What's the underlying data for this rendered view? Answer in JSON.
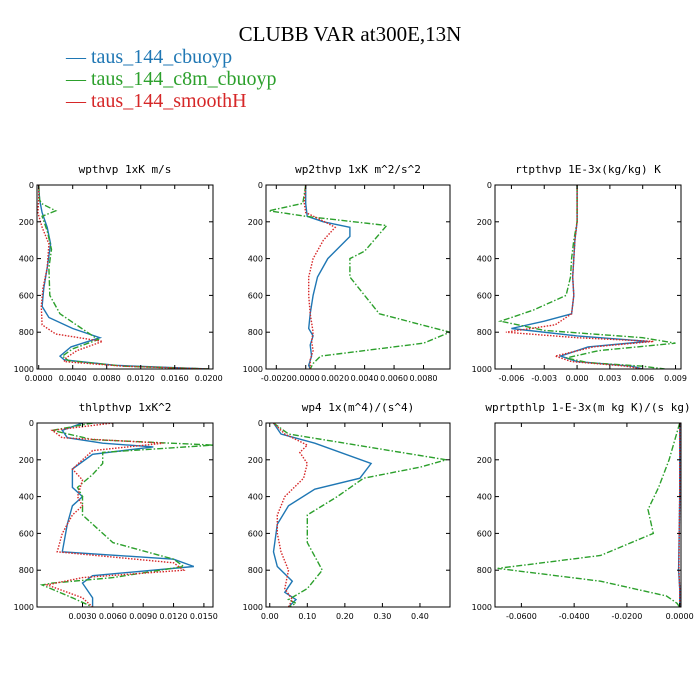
{
  "title": "CLUBB VAR at300E,13N",
  "legend": [
    {
      "label": "taus_144_cbuoyp",
      "color": "#1f77b4",
      "dash": "solid"
    },
    {
      "label": "taus_144_c8m_cbuoyp",
      "color": "#2ca02c",
      "dash": "dashdot"
    },
    {
      "label": "taus_144_smoothH",
      "color": "#d62728",
      "dash": "dotted"
    }
  ],
  "chart_data": [
    {
      "type": "line",
      "title": "wpthvp  1xK m/s",
      "xlim": [
        -0.0002,
        0.0205
      ],
      "xticks": [
        0,
        0.004,
        0.008,
        0.012,
        0.016,
        0.02
      ],
      "xticklabels": [
        "0.0000",
        "0.0040",
        "0.0080",
        "0.0120",
        "0.0160",
        "0.0200"
      ],
      "ylim": [
        0,
        1000
      ],
      "yticks": [
        0,
        200,
        400,
        600,
        800,
        1000
      ],
      "series": [
        {
          "name": "taus_144_cbuoyp",
          "x": [
            0.0,
            0.0001,
            0.0004,
            0.001,
            0.0014,
            0.001,
            0.0006,
            0.0004,
            0.0012,
            0.004,
            0.0072,
            0.0038,
            0.0025,
            0.003,
            0.009,
            0.02
          ],
          "y": [
            0,
            80,
            150,
            230,
            320,
            450,
            560,
            660,
            720,
            780,
            830,
            880,
            930,
            950,
            980,
            1000
          ]
        },
        {
          "name": "taus_144_c8m_cbuoyp",
          "x": [
            0.0,
            0.0001,
            0.0003,
            0.002,
            0.0004,
            0.001,
            0.0015,
            0.0012,
            0.0013,
            0.0025,
            0.007,
            0.004,
            0.0028,
            0.0035,
            0.01,
            0.02
          ],
          "y": [
            0,
            80,
            100,
            140,
            170,
            250,
            350,
            450,
            600,
            700,
            840,
            890,
            930,
            955,
            985,
            1000
          ]
        },
        {
          "name": "taus_144_smoothH",
          "x": [
            0.0,
            0.0,
            -0.0001,
            0.0004,
            0.0012,
            0.001,
            0.0005,
            0.0003,
            0.0004,
            0.002,
            0.0075,
            0.0045,
            0.0032,
            0.003,
            0.01,
            0.02
          ],
          "y": [
            0,
            80,
            150,
            230,
            320,
            450,
            560,
            660,
            760,
            810,
            850,
            900,
            940,
            960,
            985,
            1000
          ]
        }
      ]
    },
    {
      "type": "line",
      "title": "wp2thvp  1xK m^2/s^2",
      "xlim": [
        -0.0027,
        0.0098
      ],
      "xticks": [
        -0.002,
        0,
        0.002,
        0.004,
        0.006,
        0.008
      ],
      "xticklabels": [
        "-0.0020",
        "0.0000",
        "0.0020",
        "0.0040",
        "0.0060",
        "0.0080"
      ],
      "ylim": [
        0,
        1000
      ],
      "yticks": [
        0,
        200,
        400,
        600,
        800,
        1000
      ],
      "series": [
        {
          "name": "taus_144_cbuoyp",
          "x": [
            0.0,
            0.0,
            0.0001,
            0.0012,
            0.003,
            0.003,
            0.0015,
            0.0008,
            0.0005,
            0.0003,
            0.0002,
            0.0005,
            0.0003,
            0.0004,
            0.0002,
            0.0003
          ],
          "y": [
            0,
            100,
            170,
            200,
            230,
            280,
            400,
            500,
            600,
            700,
            780,
            820,
            870,
            930,
            980,
            1000
          ]
        },
        {
          "name": "taus_144_c8m_cbuoyp",
          "x": [
            0.0,
            -0.0002,
            -0.0025,
            0.0,
            0.0055,
            0.004,
            0.003,
            0.003,
            0.004,
            0.005,
            0.0098,
            0.008,
            0.004,
            0.001,
            0.0005,
            0.0003
          ],
          "y": [
            0,
            100,
            140,
            170,
            220,
            360,
            400,
            500,
            600,
            700,
            800,
            860,
            900,
            930,
            970,
            1000
          ]
        },
        {
          "name": "taus_144_smoothH",
          "x": [
            0.0,
            -0.0001,
            0.0,
            0.0008,
            0.002,
            0.0012,
            0.0005,
            0.0002,
            0.0002,
            0.0003,
            0.0005,
            0.0004,
            0.0005,
            0.0003,
            0.0003
          ],
          "y": [
            0,
            100,
            150,
            180,
            230,
            300,
            400,
            500,
            600,
            700,
            800,
            850,
            900,
            950,
            1000
          ]
        }
      ]
    },
    {
      "type": "line",
      "title": "rtpthvp  1E-3x(kg/kg) K",
      "xlim": [
        -0.0075,
        0.0095
      ],
      "xticks": [
        -0.006,
        -0.003,
        0,
        0.003,
        0.006,
        0.009
      ],
      "xticklabels": [
        "-0.006",
        "-0.003",
        "0.000",
        "0.003",
        "0.006",
        "0.009"
      ],
      "ylim": [
        0,
        1000
      ],
      "yticks": [
        0,
        200,
        400,
        600,
        800,
        1000
      ],
      "series": [
        {
          "name": "taus_144_cbuoyp",
          "x": [
            0.0,
            0.0,
            -0.0002,
            -0.0003,
            -0.0004,
            -0.0003,
            -0.0005,
            -0.003,
            -0.006,
            0.0,
            0.0065,
            0.001,
            -0.0015,
            0.0,
            0.005,
            0.006
          ],
          "y": [
            0,
            200,
            300,
            400,
            500,
            600,
            700,
            740,
            780,
            820,
            850,
            880,
            930,
            960,
            985,
            1000
          ]
        },
        {
          "name": "taus_144_c8m_cbuoyp",
          "x": [
            0.0,
            0.0,
            -0.0003,
            -0.0005,
            -0.0006,
            -0.001,
            -0.004,
            -0.007,
            -0.003,
            0.006,
            0.009,
            0.002,
            -0.001,
            0.001,
            0.006,
            0.008
          ],
          "y": [
            0,
            200,
            300,
            400,
            500,
            600,
            680,
            740,
            790,
            830,
            860,
            900,
            940,
            965,
            985,
            1000
          ]
        },
        {
          "name": "taus_144_smoothH",
          "x": [
            0.0,
            0.0,
            -0.0002,
            -0.0003,
            -0.0004,
            -0.0003,
            -0.0005,
            -0.002,
            -0.0065,
            0.0,
            0.007,
            0.0015,
            -0.002,
            -0.0005,
            0.0045,
            0.006
          ],
          "y": [
            0,
            200,
            300,
            400,
            500,
            600,
            700,
            760,
            800,
            830,
            850,
            880,
            930,
            960,
            985,
            1000
          ]
        }
      ]
    },
    {
      "type": "line",
      "title": "thlpthvp  1xK^2",
      "xlim": [
        -0.0015,
        0.0159
      ],
      "xticks": [
        0.003,
        0.006,
        0.009,
        0.012,
        0.015
      ],
      "xticklabels": [
        "0.0030",
        "0.0060",
        "0.0090",
        "0.0120",
        "0.0150"
      ],
      "ylim": [
        0,
        1000
      ],
      "yticks": [
        0,
        200,
        400,
        600,
        800,
        1000
      ],
      "series": [
        {
          "name": "taus_144_cbuoyp",
          "x": [
            0.003,
            0.001,
            0.0015,
            0.005,
            0.01,
            0.004,
            0.002,
            0.002,
            0.003,
            0.002,
            0.0015,
            0.001,
            0.012,
            0.014,
            0.004,
            0.003,
            0.004,
            0.004
          ],
          "y": [
            0,
            40,
            80,
            110,
            130,
            170,
            250,
            350,
            400,
            450,
            550,
            700,
            740,
            780,
            830,
            870,
            950,
            1000
          ]
        },
        {
          "name": "taus_144_c8m_cbuoyp",
          "x": [
            0.004,
            0.0,
            0.004,
            0.0159,
            0.005,
            0.005,
            0.004,
            0.0025,
            0.003,
            0.003,
            0.006,
            0.012,
            0.013,
            0.006,
            0.0,
            -0.001,
            0.002,
            0.004
          ],
          "y": [
            0,
            40,
            90,
            120,
            160,
            220,
            280,
            350,
            400,
            500,
            650,
            740,
            780,
            840,
            870,
            880,
            950,
            1000
          ]
        },
        {
          "name": "taus_144_smoothH",
          "x": [
            0.006,
            0.0,
            0.001,
            0.011,
            0.004,
            0.002,
            0.003,
            0.0025,
            0.003,
            0.002,
            0.001,
            0.0005,
            0.012,
            0.013,
            0.003,
            -0.0005,
            0.003,
            0.004
          ],
          "y": [
            0,
            40,
            80,
            110,
            150,
            250,
            310,
            400,
            450,
            500,
            600,
            700,
            760,
            800,
            840,
            880,
            950,
            1000
          ]
        }
      ]
    },
    {
      "type": "line",
      "title": "wp4  1x(m^4)/(s^4)",
      "xlim": [
        -0.01,
        0.48
      ],
      "xticks": [
        0,
        0.1,
        0.2,
        0.3,
        0.4
      ],
      "xticklabels": [
        "0.00",
        "0.10",
        "0.20",
        "0.30",
        "0.40"
      ],
      "ylim": [
        0,
        1000
      ],
      "yticks": [
        0,
        200,
        400,
        600,
        800,
        1000
      ],
      "series": [
        {
          "name": "taus_144_cbuoyp",
          "x": [
            0.01,
            0.03,
            0.12,
            0.27,
            0.24,
            0.12,
            0.05,
            0.02,
            0.01,
            0.02,
            0.06,
            0.04,
            0.07,
            0.05
          ],
          "y": [
            0,
            60,
            110,
            220,
            300,
            360,
            450,
            550,
            700,
            780,
            860,
            920,
            960,
            1000
          ]
        },
        {
          "name": "taus_144_c8m_cbuoyp",
          "x": [
            0.01,
            0.05,
            0.2,
            0.47,
            0.4,
            0.25,
            0.18,
            0.1,
            0.1,
            0.14,
            0.1,
            0.05,
            0.07,
            0.05
          ],
          "y": [
            0,
            60,
            110,
            200,
            240,
            300,
            400,
            500,
            650,
            800,
            900,
            960,
            980,
            1000
          ]
        },
        {
          "name": "taus_144_smoothH",
          "x": [
            0.01,
            0.04,
            0.1,
            0.08,
            0.1,
            0.09,
            0.04,
            0.02,
            0.02,
            0.03,
            0.05,
            0.04,
            0.06,
            0.05
          ],
          "y": [
            0,
            60,
            120,
            160,
            220,
            300,
            400,
            500,
            600,
            700,
            800,
            900,
            960,
            1000
          ]
        }
      ]
    },
    {
      "type": "line",
      "title": "wprtpthlp  1-E-3x(m kg K)/(s kg)",
      "xlim": [
        -0.07,
        0.0005
      ],
      "xticks": [
        -0.06,
        -0.04,
        -0.02,
        0
      ],
      "xticklabels": [
        "-0.0600",
        "-0.0400",
        "-0.0200",
        "0.0000"
      ],
      "ylim": [
        0,
        1000
      ],
      "yticks": [
        200,
        400,
        600,
        800,
        1000
      ],
      "series": [
        {
          "name": "taus_144_cbuoyp",
          "x": [
            0,
            0,
            0,
            -0.0002,
            -0.0004,
            0,
            0
          ],
          "y": [
            0,
            200,
            400,
            600,
            800,
            900,
            1000
          ]
        },
        {
          "name": "taus_144_c8m_cbuoyp",
          "x": [
            0,
            -0.004,
            -0.008,
            -0.012,
            -0.01,
            -0.03,
            -0.069,
            -0.03,
            -0.005,
            -0.001,
            0
          ],
          "y": [
            0,
            200,
            350,
            470,
            600,
            720,
            790,
            860,
            940,
            980,
            1000
          ]
        },
        {
          "name": "taus_144_smoothH",
          "x": [
            0,
            0,
            0,
            -0.0002,
            -0.0003,
            0,
            0
          ],
          "y": [
            0,
            200,
            400,
            600,
            800,
            900,
            1000
          ]
        }
      ]
    }
  ]
}
